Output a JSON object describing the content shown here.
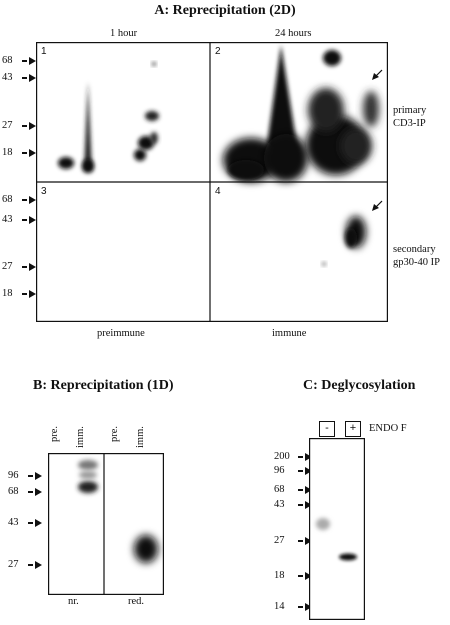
{
  "panel_a": {
    "title": "A: Reprecipitation  (2D)",
    "col_labels": [
      "1 hour",
      "24 hours"
    ],
    "row_labels": [
      [
        "primary",
        "CD3-IP"
      ],
      [
        "secondary",
        "gp30-40 IP"
      ]
    ],
    "panel_numbers": [
      "1",
      "2",
      "3",
      "4"
    ],
    "markers_top": [
      "68",
      "43",
      "27",
      "18"
    ],
    "markers_bottom": [
      "68",
      "43",
      "27",
      "18"
    ],
    "bottom_labels": [
      "preimmune",
      "immune"
    ]
  },
  "panel_b": {
    "title": "B: Reprecipitation  (1D)",
    "lanes": [
      "pre.",
      "imm.",
      "pre.",
      "imm."
    ],
    "markers": [
      "96",
      "68",
      "43",
      "27"
    ],
    "bottom_labels": [
      "nr.",
      "red."
    ]
  },
  "panel_c": {
    "title": "C: Deglycosylation",
    "lanes": [
      "-",
      "+"
    ],
    "treatment": "ENDO F",
    "markers": [
      "200",
      "96",
      "68",
      "43",
      "27",
      "18",
      "14"
    ]
  }
}
